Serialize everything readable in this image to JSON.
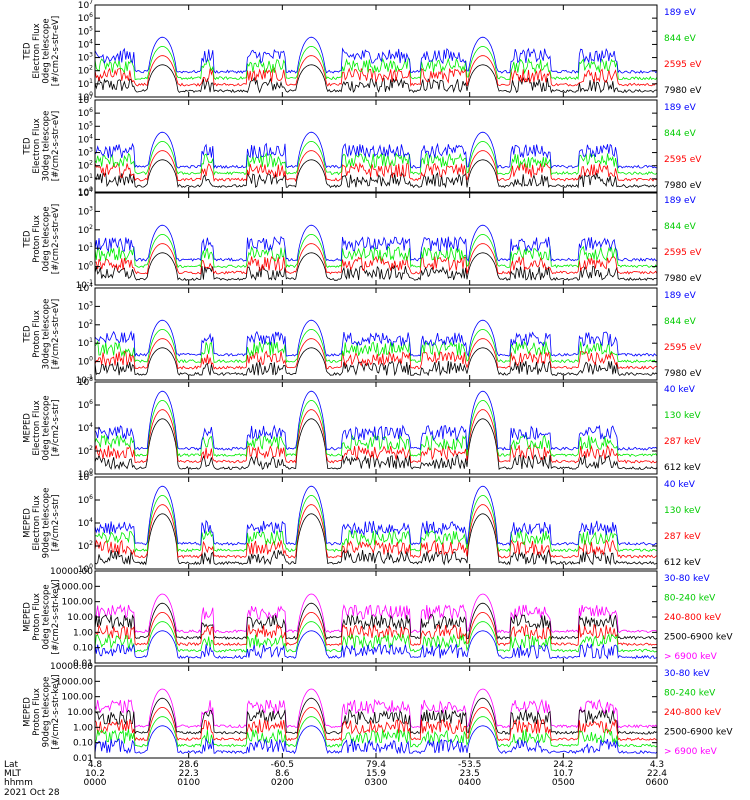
{
  "chart_data": {
    "type": "line",
    "date_label": "2021 Oct 28",
    "x_axis": {
      "rows": [
        {
          "label": "Lat",
          "values": [
            "4.8",
            "28.6",
            "-60.5",
            "79.4",
            "-53.5",
            "24.2",
            "4.3"
          ]
        },
        {
          "label": "MLT",
          "values": [
            "10.2",
            "22.3",
            "8.6",
            "15.9",
            "23.5",
            "10.7",
            "22.4"
          ]
        },
        {
          "label": "hhmm",
          "values": [
            "0000",
            "0100",
            "0200",
            "0300",
            "0400",
            "0500",
            "0600"
          ]
        }
      ],
      "xlim": [
        "0000",
        "0600"
      ]
    },
    "panels": [
      {
        "ylabel": [
          "TED",
          "Electron Flux",
          "0deg telescope",
          "[#/cm2-s-str-eV]"
        ],
        "log": true,
        "ylim": [
          1,
          10000000
        ],
        "ticks": [
          "10^0",
          "10^1",
          "10^2",
          "10^3",
          "10^4",
          "10^5",
          "10^6",
          "10^7"
        ],
        "series": [
          {
            "name": "7980 eV",
            "color": "#000000"
          },
          {
            "name": "2595 eV",
            "color": "#ff0000"
          },
          {
            "name": "844 eV",
            "color": "#00ee00"
          },
          {
            "name": "189 eV",
            "color": "#0000ff"
          }
        ]
      },
      {
        "ylabel": [
          "TED",
          "Electron Flux",
          "30deg telescope",
          "[#/cm2-s-str-eV]"
        ],
        "log": true,
        "ylim": [
          1,
          10000000
        ],
        "ticks": [
          "10^0",
          "10^1",
          "10^2",
          "10^3",
          "10^4",
          "10^5",
          "10^6",
          "10^7"
        ],
        "series": [
          {
            "name": "7980 eV",
            "color": "#000000"
          },
          {
            "name": "2595 eV",
            "color": "#ff0000"
          },
          {
            "name": "844 eV",
            "color": "#00ee00"
          },
          {
            "name": "189 eV",
            "color": "#0000ff"
          }
        ]
      },
      {
        "ylabel": [
          "TED",
          "Proton Flux",
          "0deg telescope",
          "[#/cm2-s-str-eV]"
        ],
        "log": true,
        "ylim": [
          0.1,
          100000
        ],
        "ticks": [
          "10^-1",
          "10^0",
          "10^1",
          "10^2",
          "10^3",
          "10^4"
        ],
        "series": [
          {
            "name": "7980 eV",
            "color": "#000000"
          },
          {
            "name": "2595 eV",
            "color": "#ff0000"
          },
          {
            "name": "844 eV",
            "color": "#00ee00"
          },
          {
            "name": "189 eV",
            "color": "#0000ff"
          }
        ]
      },
      {
        "ylabel": [
          "TED",
          "Proton Flux",
          "30deg telescope",
          "[#/cm2-s-str-eV]"
        ],
        "log": true,
        "ylim": [
          0.1,
          100000
        ],
        "ticks": [
          "10^-1",
          "10^0",
          "10^1",
          "10^2",
          "10^3",
          "10^4"
        ],
        "series": [
          {
            "name": "7980 eV",
            "color": "#000000"
          },
          {
            "name": "2595 eV",
            "color": "#ff0000"
          },
          {
            "name": "844 eV",
            "color": "#00ee00"
          },
          {
            "name": "189 eV",
            "color": "#0000ff"
          }
        ]
      },
      {
        "ylabel": [
          "MEPED",
          "Electron Flux",
          "0deg telescope",
          "[#/cm2-s-str]"
        ],
        "log": true,
        "ylim": [
          1,
          100000000
        ],
        "ticks": [
          "10^0",
          "10^2",
          "10^4",
          "10^6",
          "10^8"
        ],
        "series": [
          {
            "name": "612 keV",
            "color": "#000000"
          },
          {
            "name": "287 keV",
            "color": "#ff0000"
          },
          {
            "name": "130 keV",
            "color": "#00ee00"
          },
          {
            "name": "40 keV",
            "color": "#0000ff"
          }
        ]
      },
      {
        "ylabel": [
          "MEPED",
          "Electron Flux",
          "90deg telescope",
          "[#/cm2-s-str]"
        ],
        "log": true,
        "ylim": [
          1,
          100000000
        ],
        "ticks": [
          "10^0",
          "10^2",
          "10^4",
          "10^6",
          "10^8"
        ],
        "series": [
          {
            "name": "612 keV",
            "color": "#000000"
          },
          {
            "name": "287 keV",
            "color": "#ff0000"
          },
          {
            "name": "130 keV",
            "color": "#00ee00"
          },
          {
            "name": "40 keV",
            "color": "#0000ff"
          }
        ]
      },
      {
        "ylabel": [
          "MEPED",
          "Proton Flux",
          "0deg telescope",
          "[#/cm2-s-str-keV]"
        ],
        "log": true,
        "ylim": [
          0.01,
          10000
        ],
        "ticks": [
          "0.01",
          "0.10",
          "1.00",
          "10.00",
          "100.00",
          "1000.00",
          "10000.00"
        ],
        "series": [
          {
            "name": "> 6900 keV",
            "color": "#ff00ff"
          },
          {
            "name": "2500-6900 keV",
            "color": "#000000"
          },
          {
            "name": "240-800 keV",
            "color": "#ff0000"
          },
          {
            "name": "80-240 keV",
            "color": "#00ee00"
          },
          {
            "name": "30-80 keV",
            "color": "#0000ff"
          }
        ]
      },
      {
        "ylabel": [
          "MEPED",
          "Proton Flux",
          "90deg telescope",
          "[#/cm2-s-str-keV]"
        ],
        "log": true,
        "ylim": [
          0.01,
          10000
        ],
        "ticks": [
          "0.01",
          "0.10",
          "1.00",
          "10.00",
          "100.00",
          "1000.00",
          "10000.00"
        ],
        "series": [
          {
            "name": "> 6900 keV",
            "color": "#ff00ff"
          },
          {
            "name": "2500-6900 keV",
            "color": "#000000"
          },
          {
            "name": "240-800 keV",
            "color": "#ff0000"
          },
          {
            "name": "80-240 keV",
            "color": "#00ee00"
          },
          {
            "name": "30-80 keV",
            "color": "#0000ff"
          }
        ]
      }
    ]
  }
}
